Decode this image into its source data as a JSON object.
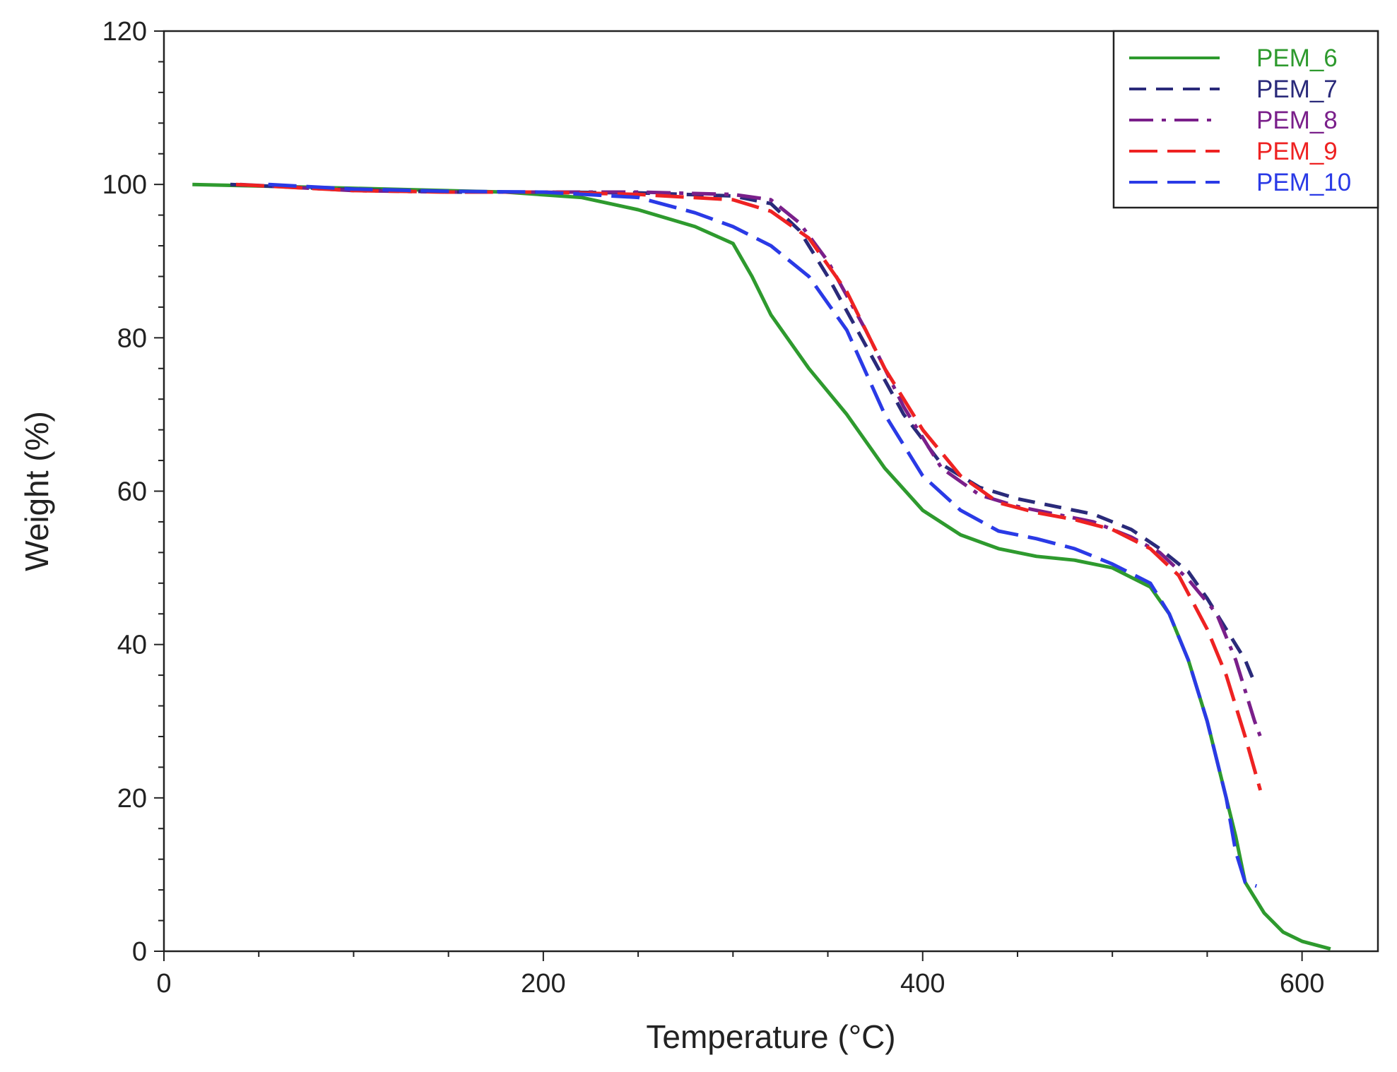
{
  "chart_data": {
    "type": "line",
    "title": "",
    "xlabel": "Temperature (°C)",
    "ylabel": "Weight (%)",
    "xlim": [
      0,
      640
    ],
    "ylim": [
      0,
      120
    ],
    "x_ticks": [
      0,
      200,
      400,
      600
    ],
    "y_ticks": [
      0,
      20,
      40,
      60,
      80,
      100,
      120
    ],
    "grid": false,
    "legend_position": "top-right",
    "series": [
      {
        "name": "PEM_6",
        "color": "#2e9a2e",
        "dash": "solid",
        "points": [
          [
            15,
            100
          ],
          [
            100,
            99.5
          ],
          [
            180,
            99
          ],
          [
            220,
            98.3
          ],
          [
            250,
            96.7
          ],
          [
            280,
            94.5
          ],
          [
            300,
            92.3
          ],
          [
            310,
            88
          ],
          [
            320,
            83
          ],
          [
            340,
            76
          ],
          [
            360,
            70
          ],
          [
            380,
            63
          ],
          [
            400,
            57.5
          ],
          [
            420,
            54.3
          ],
          [
            440,
            52.5
          ],
          [
            460,
            51.5
          ],
          [
            480,
            51
          ],
          [
            500,
            50
          ],
          [
            520,
            47.5
          ],
          [
            530,
            44
          ],
          [
            540,
            38
          ],
          [
            550,
            30
          ],
          [
            560,
            20
          ],
          [
            565,
            15
          ],
          [
            570,
            9
          ],
          [
            580,
            5
          ],
          [
            590,
            2.5
          ],
          [
            600,
            1.3
          ],
          [
            615,
            0.3
          ]
        ]
      },
      {
        "name": "PEM_7",
        "color": "#2a2a7a",
        "dash": "dash",
        "points": [
          [
            35,
            100
          ],
          [
            100,
            99.3
          ],
          [
            150,
            99
          ],
          [
            200,
            99
          ],
          [
            250,
            98.9
          ],
          [
            300,
            98.5
          ],
          [
            320,
            97.5
          ],
          [
            335,
            94
          ],
          [
            350,
            88
          ],
          [
            370,
            79
          ],
          [
            390,
            70
          ],
          [
            410,
            63.5
          ],
          [
            430,
            60.5
          ],
          [
            450,
            59
          ],
          [
            470,
            58
          ],
          [
            490,
            57
          ],
          [
            510,
            55
          ],
          [
            525,
            52.5
          ],
          [
            540,
            49.5
          ],
          [
            550,
            46
          ],
          [
            560,
            42
          ],
          [
            570,
            38
          ],
          [
            575,
            35
          ]
        ]
      },
      {
        "name": "PEM_8",
        "color": "#7a1f8a",
        "dash": "dashdot",
        "points": [
          [
            40,
            100
          ],
          [
            100,
            99.2
          ],
          [
            150,
            99
          ],
          [
            200,
            99
          ],
          [
            250,
            99
          ],
          [
            300,
            98.7
          ],
          [
            320,
            98
          ],
          [
            335,
            95
          ],
          [
            350,
            90
          ],
          [
            370,
            81
          ],
          [
            390,
            71
          ],
          [
            410,
            63
          ],
          [
            430,
            59.5
          ],
          [
            450,
            58
          ],
          [
            470,
            57
          ],
          [
            490,
            56
          ],
          [
            510,
            54
          ],
          [
            525,
            52
          ],
          [
            540,
            48.5
          ],
          [
            555,
            44
          ],
          [
            565,
            38
          ],
          [
            575,
            30
          ],
          [
            578,
            28
          ]
        ]
      },
      {
        "name": "PEM_9",
        "color": "#ee2222",
        "dash": "longdash",
        "points": [
          [
            38,
            100
          ],
          [
            100,
            99.2
          ],
          [
            150,
            99
          ],
          [
            200,
            99
          ],
          [
            250,
            98.7
          ],
          [
            300,
            98
          ],
          [
            320,
            96.5
          ],
          [
            340,
            93
          ],
          [
            360,
            86
          ],
          [
            380,
            76
          ],
          [
            400,
            68
          ],
          [
            420,
            62
          ],
          [
            440,
            58.5
          ],
          [
            460,
            57.2
          ],
          [
            480,
            56.3
          ],
          [
            500,
            55
          ],
          [
            520,
            52.5
          ],
          [
            535,
            49
          ],
          [
            550,
            42
          ],
          [
            560,
            36
          ],
          [
            570,
            28
          ],
          [
            578,
            21
          ]
        ]
      },
      {
        "name": "PEM_10",
        "color": "#2a3ae6",
        "dash": "longdash",
        "points": [
          [
            55,
            100
          ],
          [
            100,
            99.4
          ],
          [
            150,
            99.1
          ],
          [
            200,
            99
          ],
          [
            250,
            98.3
          ],
          [
            280,
            96.3
          ],
          [
            300,
            94.5
          ],
          [
            320,
            92
          ],
          [
            340,
            88
          ],
          [
            360,
            81
          ],
          [
            380,
            70
          ],
          [
            400,
            62
          ],
          [
            420,
            57.5
          ],
          [
            440,
            54.8
          ],
          [
            460,
            53.8
          ],
          [
            480,
            52.5
          ],
          [
            500,
            50.5
          ],
          [
            520,
            48
          ],
          [
            530,
            44
          ],
          [
            540,
            38
          ],
          [
            550,
            30
          ],
          [
            560,
            20
          ],
          [
            565,
            13
          ],
          [
            570,
            9
          ],
          [
            576,
            8.5
          ]
        ]
      }
    ]
  }
}
